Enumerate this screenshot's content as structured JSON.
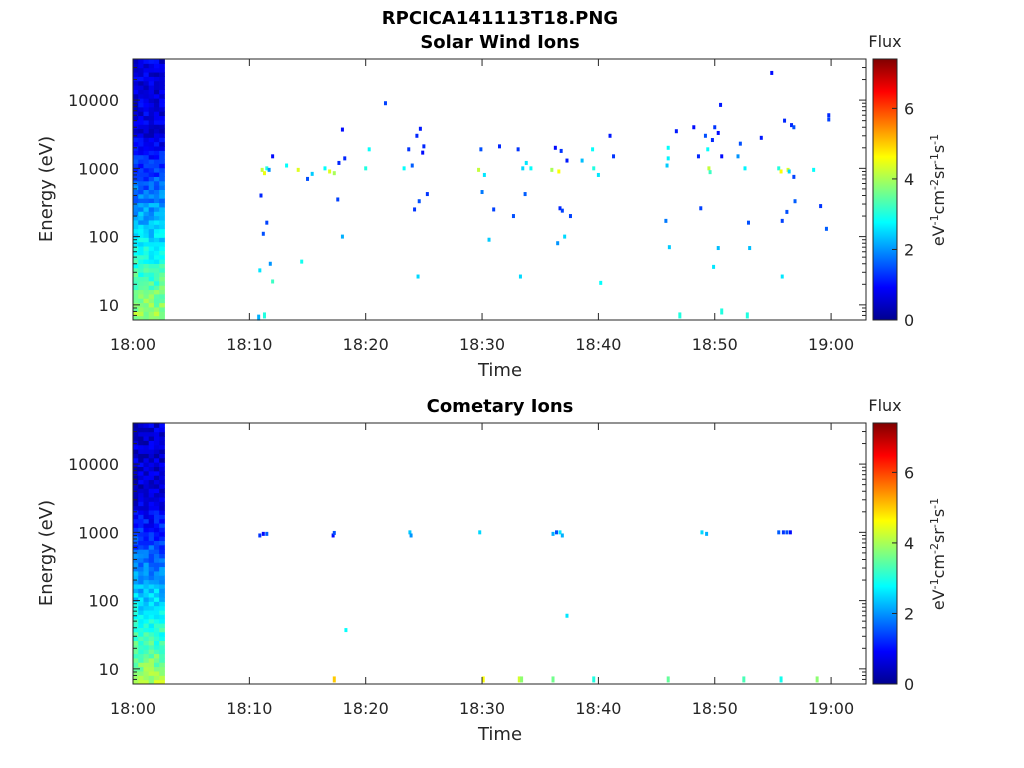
{
  "figure_title": "RPCICA141113T18.PNG",
  "chart_data": [
    {
      "type": "heatmap",
      "title": "Solar Wind Ions",
      "xlabel": "Time",
      "ylabel": "Energy (eV)",
      "x_ticks": [
        "18:00",
        "18:10",
        "18:20",
        "18:30",
        "18:40",
        "18:50",
        "19:00"
      ],
      "x_range_minutes": [
        0,
        63
      ],
      "y_scale": "log",
      "y_ticks": [
        10,
        100,
        1000,
        10000
      ],
      "y_tick_labels": [
        "10",
        "100",
        "1000",
        "10000"
      ],
      "y_range": [
        6,
        40000
      ],
      "colorbar": {
        "title": "Flux",
        "unit_label": "eV-1cm-2sr-1s-1",
        "ticks": [
          0,
          2,
          4,
          6
        ],
        "range": [
          0,
          7.4
        ],
        "colormap": "jet"
      },
      "dense_block": {
        "t_start": 0,
        "t_end": 2.7,
        "high_energy_value": 0.7,
        "low_energy_value": 4.0
      },
      "points": [
        [
          10.8,
          6.5,
          2.2
        ],
        [
          11.1,
          950,
          4.2
        ],
        [
          11.3,
          850,
          4.5
        ],
        [
          11.5,
          1000,
          3.0
        ],
        [
          11.7,
          950,
          2.0
        ],
        [
          12.0,
          1500,
          1.0
        ],
        [
          11.0,
          400,
          1.2
        ],
        [
          11.5,
          160,
          1.4
        ],
        [
          11.2,
          110,
          1.5
        ],
        [
          11.8,
          40,
          2.0
        ],
        [
          10.9,
          32,
          2.6
        ],
        [
          12.0,
          22,
          3.2
        ],
        [
          11.3,
          7,
          3.0
        ],
        [
          13.2,
          1100,
          2.8
        ],
        [
          14.2,
          950,
          4.4
        ],
        [
          14.5,
          43,
          2.9
        ],
        [
          15.0,
          700,
          1.5
        ],
        [
          15.4,
          830,
          2.4
        ],
        [
          16.5,
          1000,
          2.8
        ],
        [
          16.9,
          900,
          4.4
        ],
        [
          17.3,
          850,
          4.0
        ],
        [
          17.7,
          1200,
          1.2
        ],
        [
          18.0,
          3700,
          1.0
        ],
        [
          17.6,
          350,
          1.4
        ],
        [
          18.2,
          1400,
          1.2
        ],
        [
          18.0,
          100,
          2.2
        ],
        [
          20.0,
          1000,
          3.0
        ],
        [
          20.3,
          1900,
          2.8
        ],
        [
          21.7,
          9000,
          1.4
        ],
        [
          23.3,
          1000,
          2.8
        ],
        [
          23.7,
          1900,
          1.3
        ],
        [
          24.0,
          1100,
          1.6
        ],
        [
          24.2,
          250,
          1.3
        ],
        [
          24.6,
          330,
          1.5
        ],
        [
          24.4,
          3000,
          1.2
        ],
        [
          24.7,
          3800,
          1.1
        ],
        [
          24.9,
          1700,
          1.0
        ],
        [
          25.0,
          2100,
          1.2
        ],
        [
          25.3,
          420,
          1.3
        ],
        [
          24.5,
          26,
          2.5
        ],
        [
          29.7,
          950,
          4.2
        ],
        [
          29.9,
          1900,
          1.5
        ],
        [
          30.0,
          450,
          1.8
        ],
        [
          30.2,
          800,
          2.6
        ],
        [
          30.6,
          90,
          2.4
        ],
        [
          31.0,
          250,
          1.4
        ],
        [
          31.5,
          2100,
          1.2
        ],
        [
          32.7,
          200,
          1.5
        ],
        [
          33.1,
          1900,
          1.3
        ],
        [
          33.5,
          1000,
          2.5
        ],
        [
          33.7,
          420,
          1.6
        ],
        [
          33.8,
          1200,
          2.6
        ],
        [
          34.2,
          1000,
          2.8
        ],
        [
          33.3,
          26,
          2.5
        ],
        [
          36.0,
          950,
          4.0
        ],
        [
          36.3,
          2000,
          1.0
        ],
        [
          36.6,
          900,
          4.6
        ],
        [
          36.8,
          1800,
          1.3
        ],
        [
          36.7,
          260,
          1.2
        ],
        [
          36.9,
          240,
          1.4
        ],
        [
          37.3,
          1300,
          1.1
        ],
        [
          37.6,
          200,
          1.4
        ],
        [
          36.5,
          80,
          2.0
        ],
        [
          37.1,
          100,
          2.5
        ],
        [
          38.6,
          1300,
          2.3
        ],
        [
          39.5,
          1900,
          2.8
        ],
        [
          39.6,
          1000,
          3.0
        ],
        [
          40.0,
          800,
          2.6
        ],
        [
          40.2,
          21,
          2.8
        ],
        [
          41.0,
          3000,
          1.1
        ],
        [
          41.3,
          1500,
          1.3
        ],
        [
          45.8,
          170,
          1.8
        ],
        [
          45.9,
          1100,
          2.4
        ],
        [
          46.0,
          2000,
          2.8
        ],
        [
          46.0,
          1400,
          2.7
        ],
        [
          46.1,
          70,
          2.4
        ],
        [
          46.7,
          3500,
          1.1
        ],
        [
          47.0,
          7,
          3.0
        ],
        [
          48.2,
          4000,
          1.0
        ],
        [
          48.6,
          1500,
          1.2
        ],
        [
          48.8,
          260,
          1.4
        ],
        [
          49.2,
          3000,
          1.5
        ],
        [
          49.4,
          1900,
          2.8
        ],
        [
          49.5,
          1000,
          4.2
        ],
        [
          49.6,
          880,
          3.2
        ],
        [
          49.8,
          2600,
          1.2
        ],
        [
          50.0,
          4000,
          1.3
        ],
        [
          50.3,
          3300,
          1.0
        ],
        [
          50.5,
          8500,
          1.1
        ],
        [
          50.6,
          1500,
          1.0
        ],
        [
          49.9,
          36,
          2.6
        ],
        [
          50.3,
          68,
          2.3
        ],
        [
          50.6,
          8,
          3.0
        ],
        [
          52.0,
          1500,
          2.0
        ],
        [
          52.2,
          2300,
          1.5
        ],
        [
          52.6,
          1000,
          2.7
        ],
        [
          52.9,
          160,
          1.5
        ],
        [
          53.0,
          68,
          2.3
        ],
        [
          52.8,
          7,
          3.0
        ],
        [
          54.0,
          2800,
          1.1
        ],
        [
          54.9,
          25000,
          1.0
        ],
        [
          55.5,
          1000,
          3.0
        ],
        [
          55.7,
          900,
          4.6
        ],
        [
          56.3,
          950,
          4.4
        ],
        [
          56.0,
          5000,
          1.2
        ],
        [
          55.8,
          170,
          1.4
        ],
        [
          56.2,
          230,
          1.5
        ],
        [
          56.4,
          900,
          2.5
        ],
        [
          56.6,
          4300,
          1.2
        ],
        [
          56.8,
          4000,
          1.5
        ],
        [
          56.8,
          750,
          1.4
        ],
        [
          56.9,
          330,
          1.6
        ],
        [
          55.8,
          26,
          2.6
        ],
        [
          58.5,
          950,
          2.8
        ],
        [
          59.1,
          280,
          1.3
        ],
        [
          59.6,
          130,
          1.6
        ],
        [
          59.8,
          6000,
          1.2
        ],
        [
          59.8,
          5200,
          1.4
        ]
      ]
    },
    {
      "type": "heatmap",
      "title": "Cometary Ions",
      "xlabel": "Time",
      "ylabel": "Energy (eV)",
      "x_ticks": [
        "18:00",
        "18:10",
        "18:20",
        "18:30",
        "18:40",
        "18:50",
        "19:00"
      ],
      "x_range_minutes": [
        0,
        63
      ],
      "y_scale": "log",
      "y_ticks": [
        10,
        100,
        1000,
        10000
      ],
      "y_tick_labels": [
        "10",
        "100",
        "1000",
        "10000"
      ],
      "y_range": [
        6,
        40000
      ],
      "colorbar": {
        "title": "Flux",
        "unit_label": "eV-1cm-2sr-1s-1",
        "ticks": [
          0,
          2,
          4,
          6
        ],
        "range": [
          0,
          7.4
        ],
        "colormap": "jet"
      },
      "dense_block": {
        "t_start": 0,
        "t_end": 2.7,
        "high_energy_value": 0.6,
        "low_energy_value": 4.0
      },
      "points": [
        [
          10.9,
          900,
          1.3
        ],
        [
          11.2,
          950,
          1.0
        ],
        [
          11.5,
          950,
          1.6
        ],
        [
          17.2,
          900,
          1.0
        ],
        [
          17.3,
          980,
          1.5
        ],
        [
          23.8,
          1000,
          2.4
        ],
        [
          23.9,
          900,
          2.0
        ],
        [
          29.8,
          1000,
          2.5
        ],
        [
          36.1,
          950,
          2.2
        ],
        [
          36.4,
          1000,
          1.5
        ],
        [
          36.7,
          1000,
          2.6
        ],
        [
          36.9,
          900,
          2.2
        ],
        [
          48.9,
          1000,
          2.5
        ],
        [
          49.3,
          950,
          2.2
        ],
        [
          55.5,
          1000,
          1.6
        ],
        [
          55.9,
          1000,
          1.3
        ],
        [
          56.2,
          1000,
          1.5
        ],
        [
          56.5,
          1000,
          1.0
        ],
        [
          37.3,
          60,
          2.6
        ],
        [
          18.3,
          37,
          2.8
        ],
        [
          17.3,
          7,
          5.0
        ],
        [
          30.1,
          7,
          4.6
        ],
        [
          33.2,
          7,
          4.3
        ],
        [
          33.4,
          7,
          3.8
        ],
        [
          36.1,
          7,
          3.6
        ],
        [
          39.6,
          7,
          3.0
        ],
        [
          46.0,
          7,
          3.5
        ],
        [
          52.5,
          7,
          3.3
        ],
        [
          55.7,
          7,
          2.9
        ],
        [
          58.8,
          7,
          3.8
        ]
      ]
    }
  ]
}
